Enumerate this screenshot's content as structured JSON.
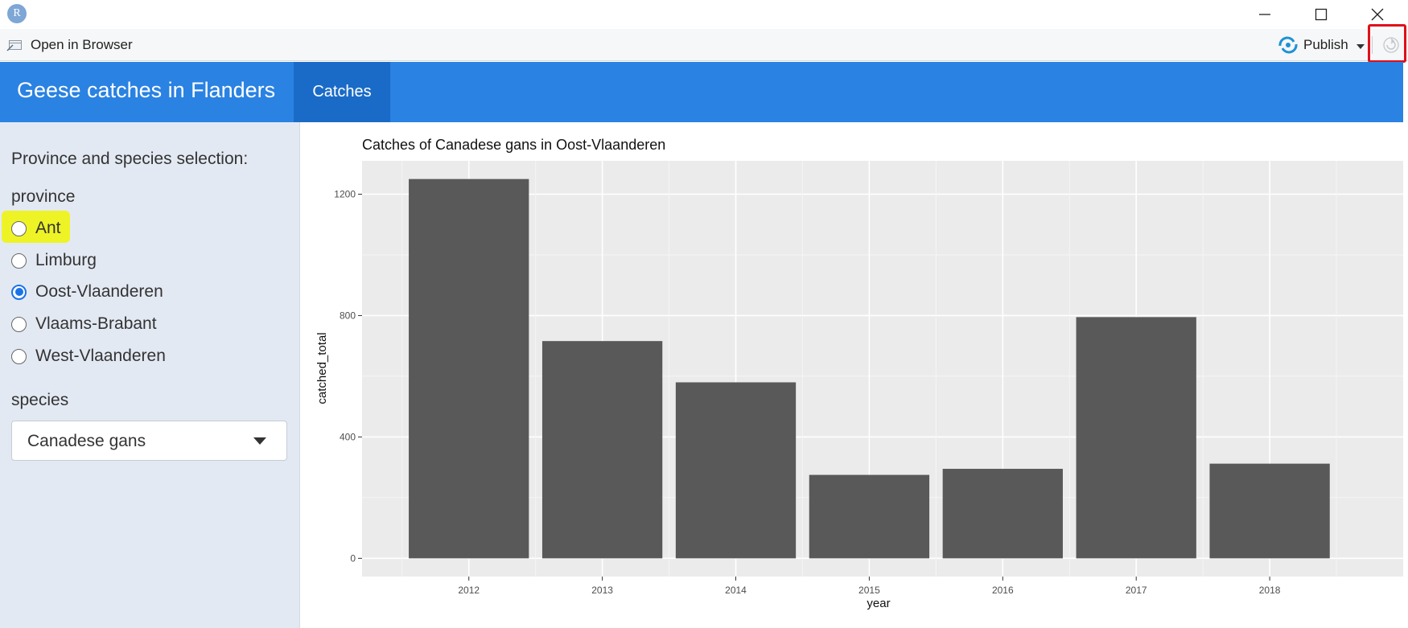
{
  "window": {
    "app_icon_letter": "R",
    "controls": [
      "minimize-icon",
      "maximize-icon",
      "close-icon"
    ]
  },
  "toolbar": {
    "open_in_browser_label": "Open in Browser",
    "publish_label": "Publish",
    "refresh_icon": "refresh-icon"
  },
  "navbar": {
    "brand": "Geese catches in Flanders",
    "tabs": [
      {
        "label": "Catches",
        "active": true
      }
    ],
    "color": "#2a82e2"
  },
  "sidebar": {
    "heading": "Province and species selection:",
    "province_label": "province",
    "provinces": [
      {
        "label": "Ant",
        "checked": false
      },
      {
        "label": "Limburg",
        "checked": false
      },
      {
        "label": "Oost-Vlaanderen",
        "checked": true
      },
      {
        "label": "Vlaams-Brabant",
        "checked": false
      },
      {
        "label": "West-Vlaanderen",
        "checked": false
      }
    ],
    "species_label": "species",
    "species_selected": "Canadese gans"
  },
  "chart_data": {
    "type": "bar",
    "title": "Catches of Canadese gans in Oost-Vlaanderen",
    "xlabel": "year",
    "ylabel": "catched_total",
    "categories": [
      "2012",
      "2013",
      "2014",
      "2015",
      "2016",
      "2017",
      "2018"
    ],
    "values": [
      1250,
      716,
      580,
      275,
      295,
      795,
      312
    ],
    "ylim": [
      -60,
      1310
    ],
    "yticks": [
      0,
      400,
      800,
      1200
    ],
    "grid": true,
    "bar_color": "#595959",
    "panel_color": "#ebebeb"
  }
}
